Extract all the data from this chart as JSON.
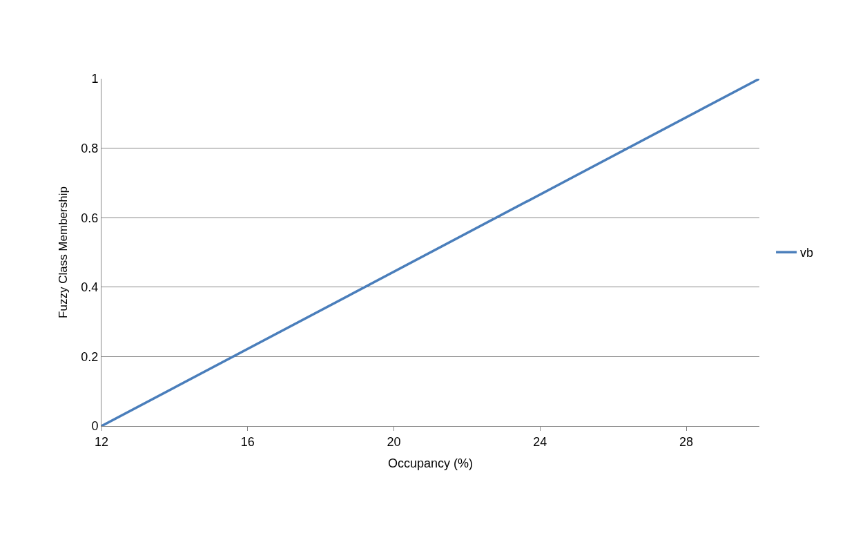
{
  "chart_data": {
    "type": "line",
    "xlabel": "Occupancy (%)",
    "ylabel": "Fuzzy Class Membership",
    "x": [
      12,
      30
    ],
    "series": [
      {
        "name": "vb",
        "color": "#4a7ebb",
        "values": [
          0,
          1
        ]
      }
    ],
    "xlim": [
      12,
      30
    ],
    "xticks": [
      12,
      16,
      20,
      24,
      28
    ],
    "ylim": [
      0,
      1
    ],
    "yticks": [
      0,
      0.2,
      0.4,
      0.6,
      0.8,
      1
    ],
    "grid": "y",
    "legend": "right",
    "marker": "none",
    "line_style": "solid"
  }
}
